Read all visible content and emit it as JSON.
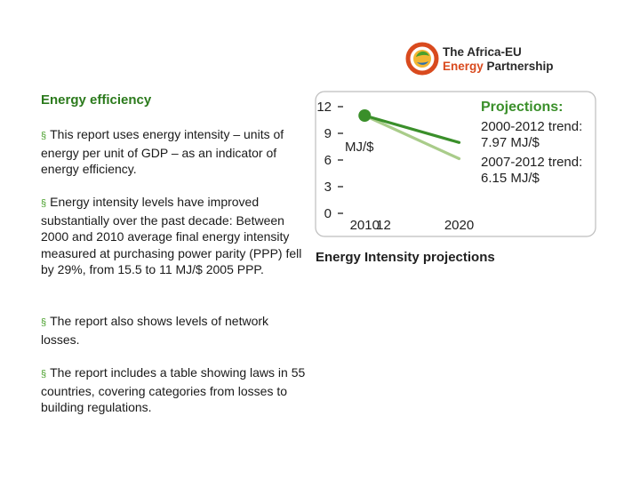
{
  "logo": {
    "line1": "The Africa-EU",
    "line2_accent": "Energy",
    "line2_rest": " Partnership",
    "colors": {
      "accent": "#d94a1e",
      "text": "#2a2a2a",
      "green": "#4aa02c",
      "yellow": "#f2b632"
    }
  },
  "section_title": "Energy efficiency",
  "bullets": [
    "This report uses energy intensity – units of energy per unit of GDP – as an indicator of energy efficiency.",
    "Energy intensity levels have improved substantially over the past decade: Between 2000 and 2010 average final energy intensity measured at purchasing power parity (PPP) fell by 29%, from 15.5 to 11 MJ/$ 2005 PPP.",
    "The report also shows levels of network losses.",
    "The report includes a table showing laws in 55 countries, covering categories from losses to building regulations."
  ],
  "bullet_mark": "§",
  "chart_caption": "Energy Intensity projections",
  "chart_data": {
    "type": "line",
    "ylabel": "MJ/$",
    "ylim": [
      0,
      12
    ],
    "yticks": [
      "0",
      "3",
      "6",
      "9",
      "12"
    ],
    "xticks": [
      "2010",
      "12",
      "2020"
    ],
    "xlim": [
      2008,
      2024
    ],
    "legend_title": "Projections:",
    "series": [
      {
        "name": "2000-2012 trend: 7.97 MJ/$",
        "label_line1": "2000-2012 trend:",
        "label_line2": "7.97 MJ/$",
        "color": "#3a8f2a",
        "x": [
          2010,
          2020
        ],
        "y": [
          11,
          7.97
        ]
      },
      {
        "name": "2007-2012 trend: 6.15 MJ/$",
        "label_line1": "2007-2012 trend:",
        "label_line2": "6.15 MJ/$",
        "color": "#a9cc8a",
        "x": [
          2010,
          2020
        ],
        "y": [
          11,
          6.15
        ]
      }
    ],
    "start_point": {
      "x": 2010,
      "y": 11
    }
  }
}
